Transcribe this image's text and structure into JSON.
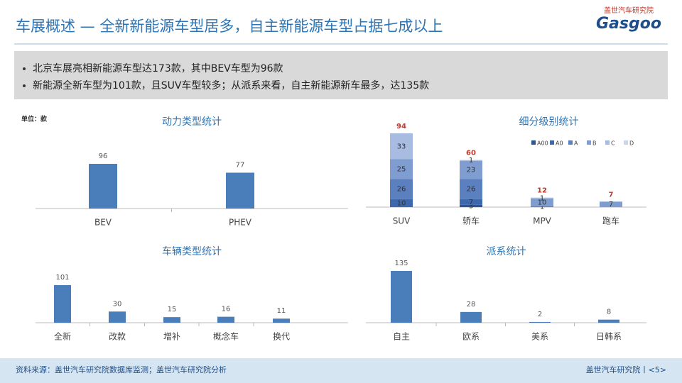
{
  "title": "车展概述 — 全新新能源车型居多，自主新能源车型占据七成以上",
  "logo": {
    "cn": "盖世汽车研究院",
    "en": "Gasgoo"
  },
  "bullets": [
    "北京车展亮相新能源车型达173款，其中BEV车型为96款",
    "新能源全新车型为101款，且SUV车型较多；从派系来看，自主新能源新车最多，达135款"
  ],
  "unit": "单位：款",
  "footer": {
    "source": "资料来源：盖世汽车研究院数据库监测；盖世汽车研究院分析",
    "brand": "盖世汽车研究院丨<5>"
  },
  "chart_data": [
    {
      "type": "bar",
      "title": "动力类型统计",
      "categories": [
        "BEV",
        "PHEV"
      ],
      "values": [
        96,
        77
      ],
      "color": "#4a7ebb"
    },
    {
      "type": "stacked_bar",
      "title": "细分级别统计",
      "categories": [
        "SUV",
        "轿车",
        "MPV",
        "跑车"
      ],
      "series": [
        {
          "name": "A00",
          "color": "#2c5597",
          "values": [
            0,
            3,
            0,
            0
          ]
        },
        {
          "name": "A0",
          "color": "#3e68ad",
          "values": [
            10,
            7,
            0,
            0
          ]
        },
        {
          "name": "A",
          "color": "#5b80c0",
          "values": [
            26,
            26,
            1,
            0
          ]
        },
        {
          "name": "B",
          "color": "#7f9dd0",
          "values": [
            25,
            23,
            10,
            7
          ]
        },
        {
          "name": "C",
          "color": "#a7bce0",
          "values": [
            33,
            1,
            1,
            0
          ]
        },
        {
          "name": "D",
          "color": "#cad6ec",
          "values": [
            0,
            0,
            0,
            0
          ]
        }
      ],
      "totals": [
        94,
        60,
        12,
        7
      ],
      "total_color": "#c0392b"
    },
    {
      "type": "bar",
      "title": "车辆类型统计",
      "categories": [
        "全新",
        "改款",
        "增补",
        "概念车",
        "换代"
      ],
      "values": [
        101,
        30,
        15,
        16,
        11
      ],
      "color": "#4a7ebb"
    },
    {
      "type": "bar",
      "title": "派系统计",
      "categories": [
        "自主",
        "欧系",
        "美系",
        "日韩系"
      ],
      "values": [
        135,
        28,
        2,
        8
      ],
      "color": "#4a7ebb"
    }
  ]
}
